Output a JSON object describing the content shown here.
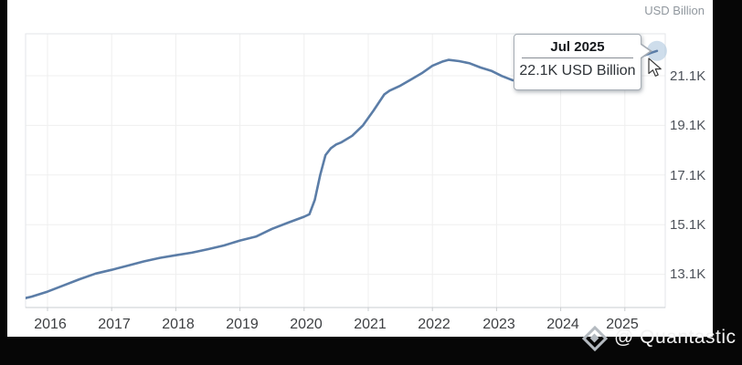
{
  "header": {
    "unit_label": "USD Billion"
  },
  "tooltip": {
    "title": "Jul 2025",
    "value": "22.1K USD Billion"
  },
  "axes": {
    "y_ticks": [
      "21.1K",
      "19.1K",
      "17.1K",
      "15.1K",
      "13.1K"
    ],
    "x_ticks": [
      "2016",
      "2017",
      "2018",
      "2019",
      "2020",
      "2021",
      "2022",
      "2023",
      "2024",
      "2025"
    ]
  },
  "watermark": {
    "logo": "quantastic-diamond-logo",
    "text": "@ Quantastic"
  },
  "colors": {
    "line": "#5b7da7",
    "marker_halo": "#adc6de",
    "grid": "#efefef",
    "plot_border": "#e3e6e8",
    "axis_line": "#c9ccd0",
    "tooltip_border": "#a6adb5",
    "background": "#ffffff",
    "letterbox": "#060606"
  },
  "chart_data": {
    "type": "line",
    "title": "",
    "unit": "USD Billion",
    "xlabel": "",
    "ylabel": "USD Billion",
    "x_range": [
      "Jul 2015",
      "Jul 2025"
    ],
    "y_tick_values_billion": [
      21100,
      19100,
      17100,
      15100,
      13100
    ],
    "grid": true,
    "legend": "none",
    "points": [
      [
        "Jul 2015",
        12050
      ],
      [
        "Oct 2015",
        12200
      ],
      [
        "Jan 2016",
        12400
      ],
      [
        "Apr 2016",
        12650
      ],
      [
        "Jul 2016",
        12900
      ],
      [
        "Oct 2016",
        13130
      ],
      [
        "Jan 2017",
        13280
      ],
      [
        "Apr 2017",
        13450
      ],
      [
        "Jul 2017",
        13620
      ],
      [
        "Oct 2017",
        13760
      ],
      [
        "Jan 2018",
        13870
      ],
      [
        "Apr 2018",
        13970
      ],
      [
        "Jul 2018",
        14110
      ],
      [
        "Oct 2018",
        14260
      ],
      [
        "Jan 2019",
        14460
      ],
      [
        "Apr 2019",
        14620
      ],
      [
        "Jul 2019",
        14930
      ],
      [
        "Oct 2019",
        15180
      ],
      [
        "Jan 2020",
        15420
      ],
      [
        "Feb 2020",
        15520
      ],
      [
        "Mar 2020",
        16100
      ],
      [
        "Apr 2020",
        17100
      ],
      [
        "May 2020",
        17900
      ],
      [
        "Jun 2020",
        18180
      ],
      [
        "Jul 2020",
        18330
      ],
      [
        "Aug 2020",
        18420
      ],
      [
        "Oct 2020",
        18680
      ],
      [
        "Dec 2020",
        19100
      ],
      [
        "Feb 2021",
        19700
      ],
      [
        "Apr 2021",
        20350
      ],
      [
        "May 2021",
        20500
      ],
      [
        "Jul 2021",
        20700
      ],
      [
        "Sep 2021",
        20950
      ],
      [
        "Nov 2021",
        21200
      ],
      [
        "Jan 2022",
        21500
      ],
      [
        "Mar 2022",
        21680
      ],
      [
        "Apr 2022",
        21740
      ],
      [
        "Jun 2022",
        21690
      ],
      [
        "Aug 2022",
        21600
      ],
      [
        "Oct 2022",
        21430
      ],
      [
        "Dec 2022",
        21300
      ],
      [
        "Feb 2023",
        21090
      ],
      [
        "Apr 2023",
        20920
      ],
      [
        "Jun 2023",
        20830
      ],
      [
        "Aug 2023",
        20750
      ],
      [
        "Oct 2023",
        20700
      ],
      [
        "Dec 2023",
        20780
      ],
      [
        "Feb 2024",
        20830
      ],
      [
        "Apr 2024",
        20900
      ],
      [
        "Jun 2024",
        21000
      ],
      [
        "Aug 2024",
        21120
      ],
      [
        "Oct 2024",
        21310
      ],
      [
        "Dec 2024",
        21500
      ],
      [
        "Feb 2025",
        21680
      ],
      [
        "Apr 2025",
        21870
      ],
      [
        "Jun 2025",
        22030
      ],
      [
        "Jul 2025",
        22100
      ]
    ],
    "highlighted_point": {
      "label": "Jul 2025",
      "value_billion": 22100,
      "display": "22.1K USD Billion"
    }
  }
}
